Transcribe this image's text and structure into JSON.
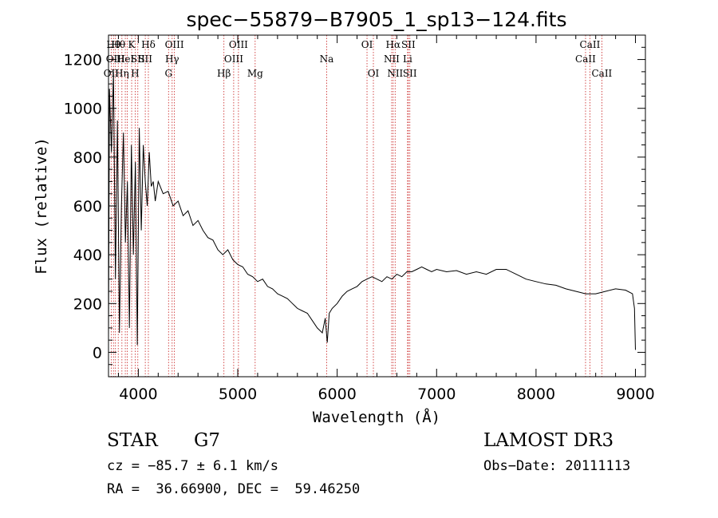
{
  "chart_data": {
    "type": "line",
    "title": "spec−55879−B7905_1_sp13−124.fits",
    "xlabel": "Wavelength (Å)",
    "ylabel": "Flux (relative)",
    "xlim": [
      3700,
      9100
    ],
    "ylim": [
      -100,
      1300
    ],
    "xticks": [
      4000,
      5000,
      6000,
      7000,
      8000,
      9000
    ],
    "yticks": [
      0,
      200,
      400,
      600,
      800,
      1000,
      1200
    ],
    "series": [
      {
        "name": "flux",
        "x": [
          3700,
          3710,
          3730,
          3750,
          3770,
          3790,
          3810,
          3830,
          3850,
          3870,
          3890,
          3910,
          3930,
          3950,
          3970,
          3990,
          4010,
          4030,
          4050,
          4070,
          4090,
          4110,
          4130,
          4150,
          4170,
          4200,
          4250,
          4300,
          4350,
          4400,
          4450,
          4500,
          4550,
          4600,
          4650,
          4700,
          4750,
          4800,
          4850,
          4900,
          4950,
          5000,
          5050,
          5100,
          5150,
          5200,
          5250,
          5300,
          5350,
          5400,
          5450,
          5500,
          5550,
          5600,
          5650,
          5700,
          5750,
          5800,
          5850,
          5880,
          5900,
          5920,
          5950,
          6000,
          6050,
          6100,
          6150,
          6200,
          6250,
          6300,
          6350,
          6400,
          6450,
          6500,
          6550,
          6600,
          6650,
          6700,
          6750,
          6800,
          6850,
          6900,
          6950,
          7000,
          7100,
          7200,
          7300,
          7400,
          7500,
          7600,
          7700,
          7800,
          7900,
          8000,
          8100,
          8200,
          8300,
          8400,
          8500,
          8600,
          8700,
          8800,
          8900,
          8970,
          8990,
          9000
        ],
        "y": [
          60,
          1080,
          820,
          1150,
          300,
          950,
          80,
          600,
          900,
          450,
          700,
          100,
          850,
          400,
          780,
          30,
          920,
          500,
          850,
          700,
          600,
          820,
          680,
          700,
          620,
          700,
          650,
          660,
          600,
          620,
          560,
          580,
          520,
          540,
          500,
          470,
          460,
          420,
          400,
          420,
          380,
          360,
          350,
          320,
          310,
          290,
          300,
          270,
          260,
          240,
          230,
          220,
          200,
          180,
          170,
          160,
          130,
          100,
          80,
          140,
          40,
          160,
          180,
          200,
          230,
          250,
          260,
          270,
          290,
          300,
          310,
          300,
          290,
          310,
          300,
          320,
          310,
          330,
          330,
          340,
          350,
          340,
          330,
          340,
          330,
          335,
          320,
          330,
          320,
          340,
          340,
          320,
          300,
          290,
          280,
          275,
          260,
          250,
          240,
          240,
          250,
          260,
          255,
          240,
          180,
          10
        ]
      }
    ],
    "line_markers": [
      {
        "wl": 3727,
        "row": 3,
        "label": "OII"
      },
      {
        "wl": 3750,
        "row": 1,
        "label": "Hθ"
      },
      {
        "wl": 3770,
        "row": 2,
        "label": "OIII"
      },
      {
        "wl": 3798,
        "row": 1,
        "label": "Hθ"
      },
      {
        "wl": 3835,
        "row": 3,
        "label": "Hη"
      },
      {
        "wl": 3869,
        "row": 2,
        "label": "HeI"
      },
      {
        "wl": 3889,
        "row": 1,
        "label": ""
      },
      {
        "wl": 3933,
        "row": 1,
        "label": "K"
      },
      {
        "wl": 3968,
        "row": 3,
        "label": "H"
      },
      {
        "wl": 3995,
        "row": 2,
        "label": "SII"
      },
      {
        "wl": 4101,
        "row": 1,
        "label": "Hδ"
      },
      {
        "wl": 4070,
        "row": 2,
        "label": "SII"
      },
      {
        "wl": 4304,
        "row": 3,
        "label": "G"
      },
      {
        "wl": 4340,
        "row": 2,
        "label": "Hγ"
      },
      {
        "wl": 4363,
        "row": 1,
        "label": "OIII"
      },
      {
        "wl": 4861,
        "row": 3,
        "label": "Hβ"
      },
      {
        "wl": 4959,
        "row": 2,
        "label": "OIII"
      },
      {
        "wl": 5007,
        "row": 1,
        "label": "OIII"
      },
      {
        "wl": 5175,
        "row": 3,
        "label": "Mg"
      },
      {
        "wl": 5894,
        "row": 2,
        "label": "Na"
      },
      {
        "wl": 6300,
        "row": 1,
        "label": "OI"
      },
      {
        "wl": 6364,
        "row": 3,
        "label": "OI"
      },
      {
        "wl": 6548,
        "row": 2,
        "label": "NII"
      },
      {
        "wl": 6563,
        "row": 1,
        "label": "Hα"
      },
      {
        "wl": 6583,
        "row": 3,
        "label": "NII"
      },
      {
        "wl": 6708,
        "row": 2,
        "label": "Li"
      },
      {
        "wl": 6716,
        "row": 1,
        "label": "SII"
      },
      {
        "wl": 6731,
        "row": 3,
        "label": "SII"
      },
      {
        "wl": 8498,
        "row": 2,
        "label": "CaII"
      },
      {
        "wl": 8542,
        "row": 1,
        "label": "CaII"
      },
      {
        "wl": 8662,
        "row": 3,
        "label": "CaII"
      }
    ]
  },
  "info": {
    "object_class": "STAR",
    "subclass": "G7",
    "survey": "LAMOST DR3",
    "cz": "cz = −85.7 ± 6.1 km/s",
    "obs_date": "Obs−Date: 20111113",
    "coords": "RA =  36.66900, DEC =  59.46250"
  },
  "colors": {
    "spectrum": "#000000",
    "line_marker": "#c81e1e",
    "axis": "#000000"
  }
}
